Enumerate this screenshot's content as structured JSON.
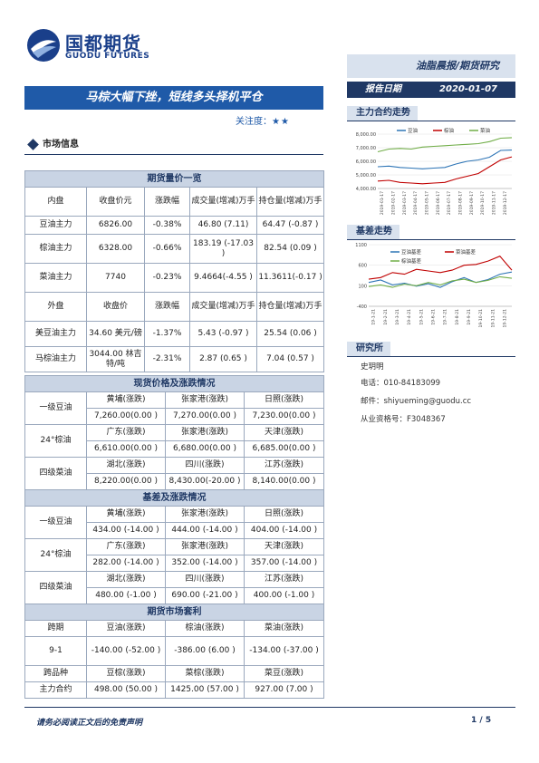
{
  "header": {
    "logo_cn": "国都期货",
    "logo_en": "GUODU FUTURES",
    "report_type": "油脂晨报/期货研究",
    "title": "马棕大幅下挫，短线多头择机平仓",
    "date_label": "报告日期",
    "date_value": "2020-01-07",
    "attention_label": "关注度：",
    "attention_stars": "★★"
  },
  "section_market": "市场信息",
  "futures_table": {
    "title": "期货量价一览",
    "head1": [
      "内盘",
      "收盘价元",
      "涨跌幅",
      "成交量(增减)万手",
      "持仓量(增减)万手"
    ],
    "rows1": [
      [
        "豆油主力",
        "6826.00",
        "-0.38%",
        "46.80 (7.11)",
        "64.47 (-0.87 )"
      ],
      [
        "棕油主力",
        "6328.00",
        "-0.66%",
        "183.19 (-17.03 )",
        "82.54 (0.09 )"
      ],
      [
        "菜油主力",
        "7740",
        "-0.23%",
        "9.4664(-4.55 )",
        "11.3611(-0.17 )"
      ]
    ],
    "head2": [
      "外盘",
      "收盘价",
      "涨跌幅",
      "成交量(增减)万手",
      "持仓量(增减)万手"
    ],
    "rows2": [
      [
        "美豆油主力",
        "34.60 美元/磅",
        "-1.37%",
        "5.43 (-0.97 )",
        "25.54 (0.06 )"
      ],
      [
        "马棕油主力",
        "3044.00 林吉特/吨",
        "-2.31%",
        "2.87 (0.65 )",
        "7.04 (0.57 )"
      ]
    ]
  },
  "spot_table": {
    "title": "现货价格及涨跌情况",
    "groups": [
      {
        "name": "一级豆油",
        "cities": [
          "黄埔(涨跌)",
          "张家港(涨跌)",
          "日照(涨跌)"
        ],
        "values": [
          "7,260.00(0.00 )",
          "7,270.00(0.00 )",
          "7,230.00(0.00 )"
        ]
      },
      {
        "name": "24°棕油",
        "cities": [
          "广东(涨跌)",
          "张家港(涨跌)",
          "天津(涨跌)"
        ],
        "values": [
          "6,610.00(0.00 )",
          "6,680.00(0.00 )",
          "6,685.00(0.00 )"
        ]
      },
      {
        "name": "四级菜油",
        "cities": [
          "湖北(涨跌)",
          "四川(涨跌)",
          "江苏(涨跌)"
        ],
        "values": [
          "8,220.00(0.00 )",
          "8,430.00(-20.00 )",
          "8,140.00(0.00 )"
        ]
      }
    ]
  },
  "basis_table": {
    "title": "基差及涨跌情况",
    "groups": [
      {
        "name": "一级豆油",
        "cities": [
          "黄埔(涨跌)",
          "张家港(涨跌)",
          "日照(涨跌)"
        ],
        "values": [
          "434.00 (-14.00 )",
          "444.00 (-14.00 )",
          "404.00 (-14.00 )"
        ]
      },
      {
        "name": "24°棕油",
        "cities": [
          "广东(涨跌)",
          "张家港(涨跌)",
          "天津(涨跌)"
        ],
        "values": [
          "282.00 (-14.00 )",
          "352.00 (-14.00 )",
          "357.00 (-14.00 )"
        ]
      },
      {
        "name": "四级菜油",
        "cities": [
          "湖北(涨跌)",
          "四川(涨跌)",
          "江苏(涨跌)"
        ],
        "values": [
          "480.00 (-1.00 )",
          "690.00 (-21.00 )",
          "400.00 (-1.00 )"
        ]
      }
    ]
  },
  "arb_table": {
    "title": "期货市场套利",
    "head1": [
      "跨期",
      "豆油(涨跌)",
      "棕油(涨跌)",
      "菜油(涨跌)"
    ],
    "row1": [
      "9-1",
      "-140.00 (-52.00 )",
      "-386.00 (6.00 )",
      "-134.00 (-37.00 )"
    ],
    "head2": [
      "跨品种",
      "豆棕(涨跌)",
      "菜棕(涨跌)",
      "菜豆(涨跌)"
    ],
    "row2": [
      "主力合约",
      "498.00 (50.00 )",
      "1425.00 (57.00 )",
      "927.00 (7.00 )"
    ]
  },
  "right": {
    "sec_main_trend": "主力合约走势",
    "sec_basis_trend": "基差走势",
    "sec_institute": "研究所",
    "analyst": "史玥明",
    "phone": "电话：010-84183099",
    "email": "邮件：shiyueming@guodu.cc",
    "license": "从业资格号：F3048367"
  },
  "chart_data": [
    {
      "type": "line",
      "legend": [
        "豆油",
        "棕油",
        "菜油"
      ],
      "legend_position": "top",
      "colors": [
        "#2e75b6",
        "#c00000",
        "#70ad47"
      ],
      "ylim": [
        4000,
        8000
      ],
      "yticks": [
        "8,000.00",
        "7,000.00",
        "6,000.00",
        "5,000.00",
        "4,000.00"
      ],
      "xticks": [
        "2019-01-17",
        "2019-02-17",
        "2019-03-17",
        "2019-04-17",
        "2019-05-17",
        "2019-06-17",
        "2019-07-17",
        "2019-08-17",
        "2019-09-17",
        "2019-10-17",
        "2019-11-17",
        "2019-12-17"
      ],
      "series": [
        {
          "name": "豆油",
          "values": [
            5600,
            5650,
            5550,
            5500,
            5450,
            5500,
            5550,
            5800,
            6000,
            6100,
            6300,
            6800,
            6826
          ]
        },
        {
          "name": "棕油",
          "values": [
            4550,
            4600,
            4450,
            4400,
            4350,
            4400,
            4450,
            4700,
            4900,
            5100,
            5600,
            6100,
            6328
          ]
        },
        {
          "name": "菜油",
          "values": [
            6700,
            6900,
            6950,
            6900,
            7050,
            7100,
            7150,
            7200,
            7250,
            7300,
            7450,
            7700,
            7740
          ]
        }
      ]
    },
    {
      "type": "line",
      "legend": [
        "豆油基差",
        "菜油基差",
        "棕油基差"
      ],
      "legend_position": "top",
      "colors": [
        "#2e75b6",
        "#c00000",
        "#70ad47"
      ],
      "ylim": [
        -400,
        1100
      ],
      "yticks": [
        "1100",
        "600",
        "100",
        "-400"
      ],
      "xticks": [
        "19-1-21",
        "19-2-21",
        "19-3-21",
        "19-4-21",
        "19-5-21",
        "19-6-21",
        "19-7-21",
        "19-8-21",
        "19-9-21",
        "19-10-21",
        "19-11-21",
        "19-12-21"
      ],
      "series": [
        {
          "name": "豆油基差",
          "values": [
            180,
            240,
            120,
            160,
            90,
            150,
            60,
            200,
            300,
            180,
            250,
            380,
            434
          ]
        },
        {
          "name": "菜油基差",
          "values": [
            260,
            300,
            420,
            380,
            500,
            460,
            420,
            480,
            600,
            620,
            700,
            820,
            480
          ]
        },
        {
          "name": "棕油基差",
          "values": [
            80,
            120,
            60,
            140,
            100,
            180,
            120,
            220,
            260,
            180,
            230,
            320,
            282
          ]
        }
      ]
    }
  ],
  "footer": {
    "disclaimer": "请务必阅读正文后的免责声明",
    "page": "1 / 5"
  }
}
